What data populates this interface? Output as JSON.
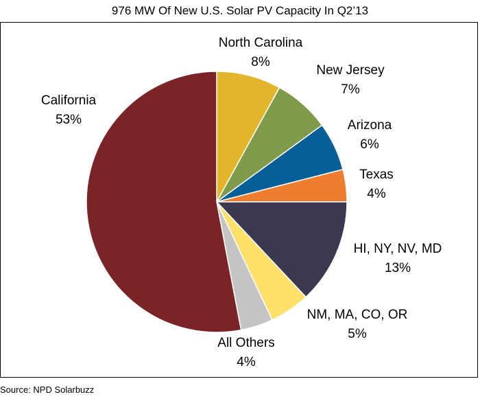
{
  "chart_data": {
    "type": "pie",
    "title": "976 MW Of New U.S. Solar PV Capacity In Q2’13",
    "source": "Source: NPD Solarbuzz",
    "slices": [
      {
        "label": "North Carolina",
        "pct_label": "8%",
        "value": 8,
        "color": "#e3b52a"
      },
      {
        "label": "New Jersey",
        "pct_label": "7%",
        "value": 7,
        "color": "#7f9a4a"
      },
      {
        "label": "Arizona",
        "pct_label": "6%",
        "value": 6,
        "color": "#065f96"
      },
      {
        "label": "Texas",
        "pct_label": "4%",
        "value": 4,
        "color": "#ef7d2e"
      },
      {
        "label": "HI, NY, NV, MD",
        "pct_label": "13%",
        "value": 13,
        "color": "#3b3852"
      },
      {
        "label": "NM, MA, CO, OR",
        "pct_label": "5%",
        "value": 5,
        "color": "#ffe06b"
      },
      {
        "label": "All Others",
        "pct_label": "4%",
        "value": 4,
        "color": "#c4c4c4"
      },
      {
        "label": "California",
        "pct_label": "53%",
        "value": 53,
        "color": "#7a2428"
      }
    ]
  }
}
